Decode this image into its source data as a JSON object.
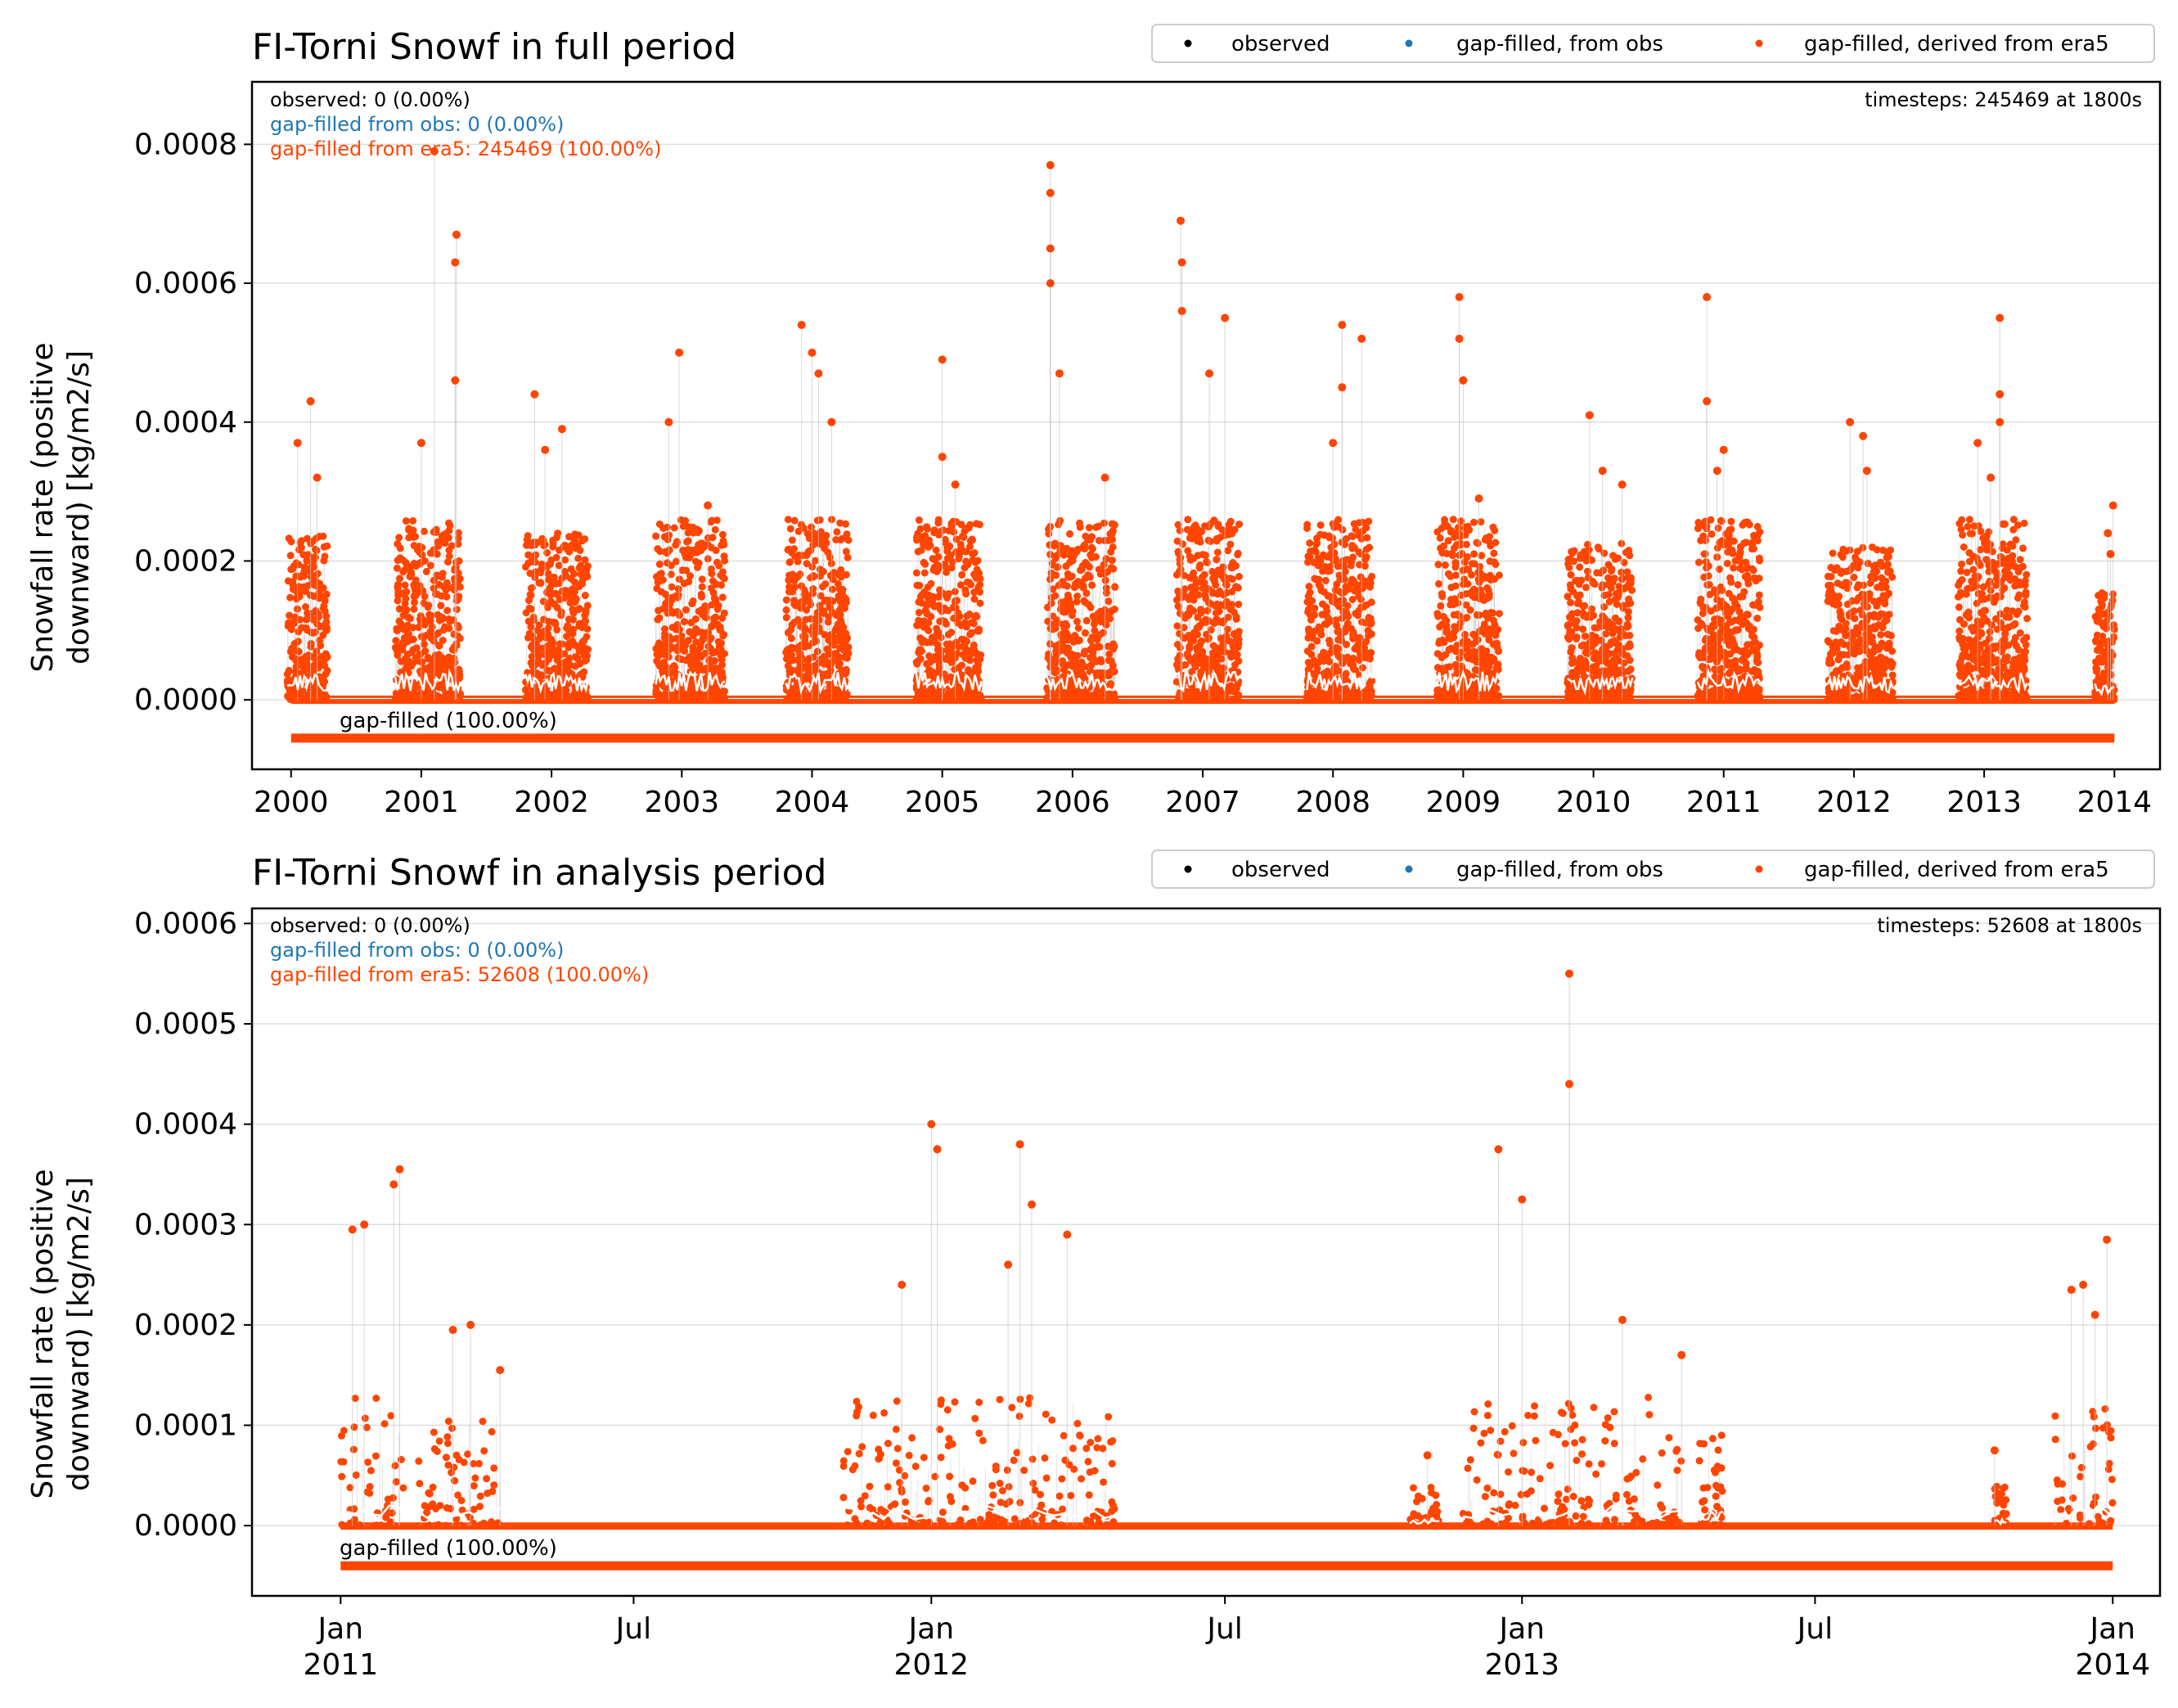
{
  "colors": {
    "observed": "#000000",
    "gap_obs": "#1f77b4",
    "gap_era5": "#ff4500",
    "grid": "#dddddd",
    "axis": "#000000",
    "mean_line": "#ffffff",
    "connector": "#c8c8c8"
  },
  "legend": {
    "observed": "observed",
    "gap_obs": "gap-filled, from obs",
    "gap_era5": "gap-filled, derived from era5"
  },
  "chart_data": [
    {
      "type": "scatter",
      "title": "FI-Torni Snowf in full period",
      "ylabel_line1": "Snowfall rate (positive",
      "ylabel_line2": "downward) [kg/m2/s]",
      "xlabel": "",
      "ylim": [
        -0.0001,
        0.00089
      ],
      "xlim": [
        1999.7,
        2014.35
      ],
      "grid": "horizontal",
      "legend_position": "top-right",
      "yticks": [
        {
          "value": 0.0,
          "label": "0.0000"
        },
        {
          "value": 0.0002,
          "label": "0.0002"
        },
        {
          "value": 0.0004,
          "label": "0.0004"
        },
        {
          "value": 0.0006,
          "label": "0.0006"
        },
        {
          "value": 0.0008,
          "label": "0.0008"
        }
      ],
      "xticks": [
        {
          "value": 2000,
          "label": "2000"
        },
        {
          "value": 2001,
          "label": "2001"
        },
        {
          "value": 2002,
          "label": "2002"
        },
        {
          "value": 2003,
          "label": "2003"
        },
        {
          "value": 2004,
          "label": "2004"
        },
        {
          "value": 2005,
          "label": "2005"
        },
        {
          "value": 2006,
          "label": "2006"
        },
        {
          "value": 2007,
          "label": "2007"
        },
        {
          "value": 2008,
          "label": "2008"
        },
        {
          "value": 2009,
          "label": "2009"
        },
        {
          "value": 2010,
          "label": "2010"
        },
        {
          "value": 2011,
          "label": "2011"
        },
        {
          "value": 2012,
          "label": "2012"
        },
        {
          "value": 2013,
          "label": "2013"
        },
        {
          "value": 2014,
          "label": "2014"
        }
      ],
      "stats": {
        "observed": "observed: 0 (0.00%)",
        "gap_obs": "gap-filled from obs: 0 (0.00%)",
        "gap_era5": "gap-filled from era5: 245469 (100.00%)",
        "timesteps": "timesteps: 245469 at 1800s"
      },
      "coverage": {
        "label": "gap-filled (100.00%)",
        "start": 2000.0,
        "end": 2014.0,
        "y": -5.5e-05
      },
      "mean_y": 4.5e-06,
      "seasons": [
        {
          "start": 1999.97,
          "end": 2000.28,
          "peaks": [
            [
              2000.15,
              0.00043
            ],
            [
              2000.05,
              0.00037
            ],
            [
              2000.2,
              0.00032
            ]
          ]
        },
        {
          "start": 2000.8,
          "end": 2001.3,
          "peaks": [
            [
              2001.1,
              0.00079
            ],
            [
              2001.27,
              0.00067
            ],
            [
              2001.26,
              0.00063
            ],
            [
              2001.26,
              0.00046
            ],
            [
              2001.0,
              0.00037
            ]
          ]
        },
        {
          "start": 2001.8,
          "end": 2002.28,
          "peaks": [
            [
              2001.87,
              0.00044
            ],
            [
              2002.08,
              0.00039
            ],
            [
              2001.95,
              0.00036
            ]
          ]
        },
        {
          "start": 2002.8,
          "end": 2003.33,
          "peaks": [
            [
              2002.98,
              0.0005
            ],
            [
              2002.9,
              0.0004
            ],
            [
              2003.2,
              0.00028
            ]
          ]
        },
        {
          "start": 2003.8,
          "end": 2004.28,
          "peaks": [
            [
              2003.92,
              0.00054
            ],
            [
              2004.0,
              0.0005
            ],
            [
              2004.05,
              0.00047
            ],
            [
              2004.15,
              0.0004
            ]
          ]
        },
        {
          "start": 2004.8,
          "end": 2005.3,
          "peaks": [
            [
              2005.0,
              0.00049
            ],
            [
              2005.0,
              0.00035
            ],
            [
              2005.1,
              0.00031
            ]
          ]
        },
        {
          "start": 2005.8,
          "end": 2006.33,
          "peaks": [
            [
              2005.83,
              0.00077
            ],
            [
              2005.83,
              0.00073
            ],
            [
              2005.83,
              0.00065
            ],
            [
              2005.83,
              0.0006
            ],
            [
              2005.9,
              0.00047
            ],
            [
              2006.25,
              0.00032
            ]
          ]
        },
        {
          "start": 2006.8,
          "end": 2007.28,
          "peaks": [
            [
              2006.83,
              0.00069
            ],
            [
              2006.84,
              0.00063
            ],
            [
              2006.84,
              0.00056
            ],
            [
              2007.17,
              0.00055
            ],
            [
              2007.05,
              0.00047
            ]
          ]
        },
        {
          "start": 2007.8,
          "end": 2008.3,
          "peaks": [
            [
              2008.07,
              0.00054
            ],
            [
              2008.22,
              0.00052
            ],
            [
              2008.07,
              0.00045
            ],
            [
              2008.0,
              0.00037
            ]
          ]
        },
        {
          "start": 2008.8,
          "end": 2009.28,
          "peaks": [
            [
              2008.97,
              0.00058
            ],
            [
              2008.97,
              0.00052
            ],
            [
              2009.0,
              0.00046
            ],
            [
              2009.12,
              0.00029
            ]
          ]
        },
        {
          "start": 2009.8,
          "end": 2010.3,
          "peaks": [
            [
              2009.97,
              0.00041
            ],
            [
              2010.07,
              0.00033
            ],
            [
              2010.22,
              0.00031
            ]
          ]
        },
        {
          "start": 2010.8,
          "end": 2011.28,
          "peaks": [
            [
              2010.87,
              0.00058
            ],
            [
              2010.87,
              0.00043
            ],
            [
              2011.0,
              0.00036
            ],
            [
              2010.95,
              0.00033
            ]
          ]
        },
        {
          "start": 2011.8,
          "end": 2012.3,
          "peaks": [
            [
              2011.97,
              0.0004
            ],
            [
              2012.07,
              0.00038
            ],
            [
              2012.1,
              0.00033
            ]
          ]
        },
        {
          "start": 2012.8,
          "end": 2013.33,
          "peaks": [
            [
              2013.12,
              0.00055
            ],
            [
              2013.12,
              0.00044
            ],
            [
              2013.12,
              0.0004
            ],
            [
              2012.95,
              0.00037
            ],
            [
              2013.05,
              0.00032
            ]
          ]
        },
        {
          "start": 2013.85,
          "end": 2014.0,
          "peaks": [
            [
              2013.99,
              0.00028
            ],
            [
              2013.95,
              0.00024
            ],
            [
              2013.97,
              0.00021
            ]
          ]
        }
      ]
    },
    {
      "type": "scatter",
      "title": "FI-Torni Snowf in analysis period",
      "ylabel_line1": "Snowfall rate (positive",
      "ylabel_line2": "downward) [kg/m2/s]",
      "xlabel": "",
      "ylim": [
        -7e-05,
        0.000615
      ],
      "xlim": [
        2010.85,
        2014.08
      ],
      "grid": "horizontal",
      "legend_position": "top-right",
      "yticks": [
        {
          "value": 0.0,
          "label": "0.0000"
        },
        {
          "value": 0.0001,
          "label": "0.0001"
        },
        {
          "value": 0.0002,
          "label": "0.0002"
        },
        {
          "value": 0.0003,
          "label": "0.0003"
        },
        {
          "value": 0.0004,
          "label": "0.0004"
        },
        {
          "value": 0.0005,
          "label": "0.0005"
        },
        {
          "value": 0.0006,
          "label": "0.0006"
        }
      ],
      "xticks": [
        {
          "value": 2011.0,
          "label": "Jan",
          "label2": "2011"
        },
        {
          "value": 2011.496,
          "label": "Jul",
          "label2": ""
        },
        {
          "value": 2012.0,
          "label": "Jan",
          "label2": "2012"
        },
        {
          "value": 2012.497,
          "label": "Jul",
          "label2": ""
        },
        {
          "value": 2013.0,
          "label": "Jan",
          "label2": "2013"
        },
        {
          "value": 2013.496,
          "label": "Jul",
          "label2": ""
        },
        {
          "value": 2014.0,
          "label": "Jan",
          "label2": "2014"
        }
      ],
      "stats": {
        "observed": "observed: 0 (0.00%)",
        "gap_obs": "gap-filled from obs: 0 (0.00%)",
        "gap_era5": "gap-filled from era5: 52608 (100.00%)",
        "timesteps": "timesteps: 52608 at 1800s"
      },
      "coverage": {
        "label": "gap-filled (100.00%)",
        "start": 2011.0,
        "end": 2014.0,
        "y": -4e-05
      },
      "mean_y": 2e-06,
      "seasons": [
        {
          "start": 2011.0,
          "end": 2011.11,
          "peaks": [
            [
              2011.1,
              0.000355
            ],
            [
              2011.02,
              0.000295
            ],
            [
              2011.04,
              0.0003
            ],
            [
              2011.09,
              0.00034
            ]
          ]
        },
        {
          "start": 2011.13,
          "end": 2011.27,
          "peaks": [
            [
              2011.19,
              0.000195
            ],
            [
              2011.22,
              0.0002
            ],
            [
              2011.27,
              0.000155
            ]
          ]
        },
        {
          "start": 2011.85,
          "end": 2012.04,
          "peaks": [
            [
              2012.0,
              0.0004
            ],
            [
              2012.01,
              0.000375
            ],
            [
              2011.95,
              0.00024
            ]
          ]
        },
        {
          "start": 2012.04,
          "end": 2012.31,
          "peaks": [
            [
              2012.15,
              0.00038
            ],
            [
              2012.17,
              0.00032
            ],
            [
              2012.23,
              0.00029
            ],
            [
              2012.13,
              0.00026
            ]
          ]
        },
        {
          "start": 2012.81,
          "end": 2012.86,
          "peaks": [
            [
              2012.84,
              7e-05
            ]
          ]
        },
        {
          "start": 2012.9,
          "end": 2013.27,
          "peaks": [
            [
              2013.08,
              0.00055
            ],
            [
              2013.08,
              0.00044
            ],
            [
              2012.96,
              0.000375
            ],
            [
              2013.0,
              0.000325
            ],
            [
              2013.17,
              0.000205
            ]
          ]
        },
        {
          "start": 2013.3,
          "end": 2013.34,
          "peaks": [
            [
              2013.27,
              0.00017
            ]
          ]
        },
        {
          "start": 2013.8,
          "end": 2013.82,
          "peaks": [
            [
              2013.8,
              7.5e-05
            ]
          ]
        },
        {
          "start": 2013.9,
          "end": 2014.0,
          "peaks": [
            [
              2013.99,
              0.000285
            ],
            [
              2013.93,
              0.000235
            ],
            [
              2013.95,
              0.00024
            ],
            [
              2013.97,
              0.00021
            ]
          ]
        }
      ]
    }
  ]
}
